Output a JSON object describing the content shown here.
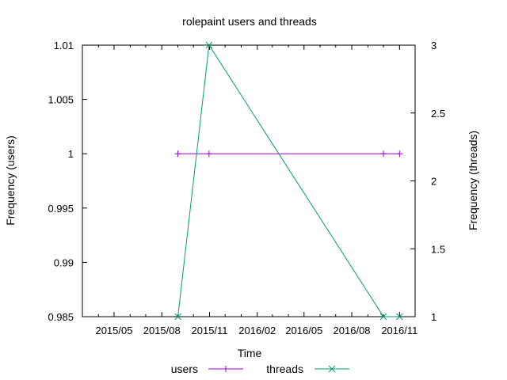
{
  "chart_data": {
    "type": "line",
    "title": "rolepaint users and threads",
    "xlabel": "Time",
    "ylabel_left": "Frequency (users)",
    "ylabel_right": "Frequency (threads)",
    "x_ticks": [
      "2015/05",
      "2015/08",
      "2015/11",
      "2016/02",
      "2016/05",
      "2016/08",
      "2016/11"
    ],
    "x_range": [
      "2015-03-01",
      "2016-12-01"
    ],
    "y_left_range": [
      0.985,
      1.01
    ],
    "y_left_ticks": [
      "0.985",
      "0.99",
      "0.995",
      "1",
      "1.005",
      "1.01"
    ],
    "y_right_range": [
      1,
      3
    ],
    "y_right_ticks": [
      "1",
      "1.5",
      "2",
      "2.5",
      "3"
    ],
    "grid": false,
    "legend_position": "bottom-center",
    "series": [
      {
        "name": "users",
        "axis": "left",
        "color": "#9400d3",
        "marker": "plus",
        "x": [
          "2015-09-01",
          "2015-10-31",
          "2016-10-01",
          "2016-11-01"
        ],
        "y": [
          1,
          1,
          1,
          1
        ]
      },
      {
        "name": "threads",
        "axis": "right",
        "color": "#009e73",
        "marker": "cross",
        "x": [
          "2015-09-01",
          "2015-10-31",
          "2016-10-01",
          "2016-11-01"
        ],
        "y": [
          1,
          3,
          1,
          1
        ]
      }
    ]
  }
}
